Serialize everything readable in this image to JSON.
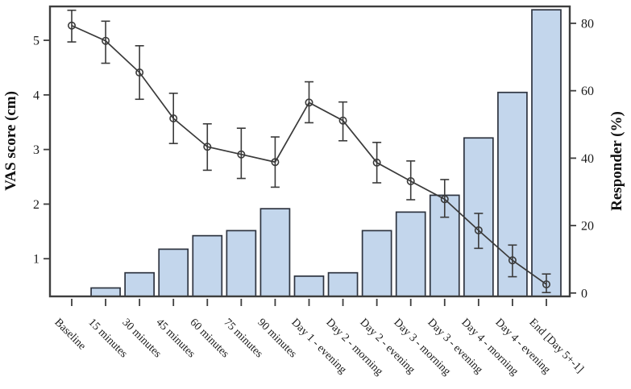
{
  "chart_data": {
    "type": "bar+line",
    "title": "",
    "categories": [
      "Baseline",
      "15 minutes",
      "30 minutes",
      "45 minutes",
      "60 minutes",
      "75 minutes",
      "90 minutes",
      "Day 1 - evening",
      "Day 2 - morning",
      "Day 2 - evening",
      "Day 3 - morning",
      "Day 3 - evening",
      "Day 4 - morning",
      "Day 4 - evening",
      "End [Day 5+-1]"
    ],
    "series": [
      {
        "name": "Responder (%)",
        "type": "bar",
        "axis": "right",
        "values": [
          null,
          1.5,
          6,
          13,
          17,
          18.5,
          25,
          5,
          6,
          18.5,
          24,
          29,
          46,
          59.5,
          84
        ]
      },
      {
        "name": "VAS score (cm)",
        "type": "line",
        "axis": "left",
        "marker": "open-circle",
        "values": [
          5.27,
          4.99,
          4.41,
          3.57,
          3.05,
          2.91,
          2.77,
          3.86,
          3.53,
          2.76,
          2.42,
          2.09,
          1.52,
          0.97,
          0.53
        ],
        "error_low": [
          4.97,
          4.58,
          3.92,
          3.11,
          2.62,
          2.47,
          2.31,
          3.49,
          3.16,
          2.39,
          2.08,
          1.76,
          1.19,
          0.67,
          0.38
        ],
        "error_high": [
          5.55,
          5.35,
          4.9,
          4.03,
          3.47,
          3.39,
          3.23,
          4.24,
          3.87,
          3.13,
          2.79,
          2.45,
          1.83,
          1.25,
          0.72
        ]
      }
    ],
    "ylabel_left": "VAS score (cm)",
    "ylabel_right": "Responder (%)",
    "xlabel": "",
    "left_axis": {
      "ticks": [
        1,
        2,
        3,
        4,
        5
      ],
      "range": [
        0.31,
        5.62
      ]
    },
    "right_axis": {
      "ticks": [
        0,
        20,
        40,
        60,
        80
      ],
      "range": [
        -1,
        85
      ]
    },
    "grid": false,
    "legend": "none",
    "colors": {
      "bar_fill": "#c3d6ec",
      "bar_stroke": "#2e3440",
      "line": "#3a3a3a",
      "frame": "#3e3e3e",
      "text": "#1a1a1a"
    }
  }
}
